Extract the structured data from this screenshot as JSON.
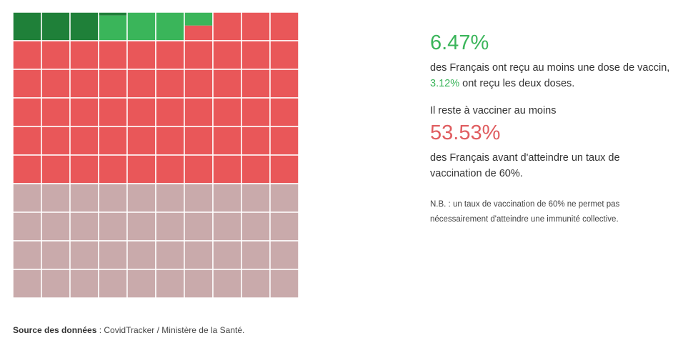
{
  "chart_data": {
    "type": "waffle",
    "grid": {
      "rows": 10,
      "cols": 10
    },
    "categories": [
      "deux doses",
      "au moins une dose",
      "reste à vacciner",
      "au-delà de 60%"
    ],
    "values": [
      3.12,
      3.35,
      53.53,
      40.0
    ],
    "colors": [
      "#1f8039",
      "#3ab55a",
      "#e95759",
      "#c9aaab"
    ],
    "cell_border_color": "#ffffff"
  },
  "stats": {
    "first_dose_pct": "6.47%",
    "first_dose_text_1": "des Français ont reçu au moins une dose de vaccin,",
    "second_dose_pct": "3.12%",
    "first_dose_text_2": "ont reçu les deux doses.",
    "remaining_label": "Il reste à vacciner au moins",
    "remaining_pct": "53.53%",
    "remaining_text": "des Français avant d'atteindre un taux de vaccination de 60%.",
    "nb": "N.B. : un taux de vaccination de 60% ne permet pas nécessairement d'atteindre une immunité collective."
  },
  "source": {
    "label": "Source des données",
    "separator": " : ",
    "text": "CovidTracker / Ministère de la Santé."
  }
}
